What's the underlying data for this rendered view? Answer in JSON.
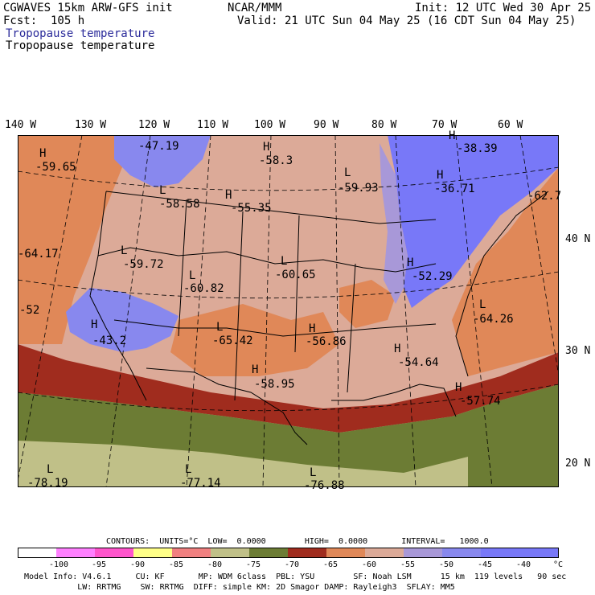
{
  "header": {
    "model": "CGWAVES 15km ARW-GFS init",
    "org": "NCAR/MMM",
    "init": "Init: 12 UTC Wed 30 Apr 25",
    "fcst": "Fcst:  105 h",
    "valid": "Valid: 21 UTC Sun 04 May 25 (16 CDT Sun 04 May 25)",
    "field_title": "Tropopause temperature",
    "field_subtitle": "Tropopause temperature"
  },
  "colors": {
    "title_blue": "#2a2a9a",
    "fill_minus100": "#ffffff",
    "fill_minus95": "#ff80ff",
    "fill_minus90": "#ff55cc",
    "fill_minus85": "#ffff88",
    "fill_minus80": "#f08080",
    "fill_minus75": "#c0c088",
    "fill_minus70": "#6c7c34",
    "fill_minus65": "#a02c1e",
    "fill_minus60": "#e08858",
    "fill_minus55": "#dcaa98",
    "fill_minus50": "#a898d8",
    "fill_minus45": "#8888ee",
    "fill_minus40": "#7878f8"
  },
  "lon_labels": [
    "140 W",
    "130 W",
    "120 W",
    "110 W",
    "100 W",
    "90 W",
    "80 W",
    "70 W",
    "60 W"
  ],
  "lat_labels": [
    "40 N",
    "30 N",
    "20 N"
  ],
  "map_labels": [
    {
      "t": "H"
    },
    {
      "t": "-59.65"
    },
    {
      "t": "-47.19"
    },
    {
      "t": "H"
    },
    {
      "t": "-58.3"
    },
    {
      "t": "H"
    },
    {
      "t": "-38.39"
    },
    {
      "t": "L"
    },
    {
      "t": "-59.93"
    },
    {
      "t": "H"
    },
    {
      "t": "-36.71"
    },
    {
      "t": "-62.7"
    },
    {
      "t": "L"
    },
    {
      "t": "-58.58"
    },
    {
      "t": "H"
    },
    {
      "t": "-55.35"
    },
    {
      "t": "-64.17"
    },
    {
      "t": "L"
    },
    {
      "t": "-59.72"
    },
    {
      "t": "L"
    },
    {
      "t": "-60.82"
    },
    {
      "t": "L"
    },
    {
      "t": "-60.65"
    },
    {
      "t": "H"
    },
    {
      "t": "-52.29"
    },
    {
      "t": "L"
    },
    {
      "t": "-64.26"
    },
    {
      "t": "-52"
    },
    {
      "t": "H"
    },
    {
      "t": "-43.2"
    },
    {
      "t": "L"
    },
    {
      "t": "-65.42"
    },
    {
      "t": "H"
    },
    {
      "t": "-56.86"
    },
    {
      "t": "H"
    },
    {
      "t": "-54.64"
    },
    {
      "t": "H"
    },
    {
      "t": "-58.95"
    },
    {
      "t": "H"
    },
    {
      "t": "-57.74"
    },
    {
      "t": "L"
    },
    {
      "t": "-78.19"
    },
    {
      "t": "L"
    },
    {
      "t": "-77.14"
    },
    {
      "t": "L"
    },
    {
      "t": "-76.88"
    }
  ],
  "contours_line": "CONTOURS:  UNITS=°C  LOW=  0.0000        HIGH=  0.0000       INTERVAL=   1000.0",
  "colorbar_ticks": [
    "-100",
    "-95",
    "-90",
    "-85",
    "-80",
    "-75",
    "-70",
    "-65",
    "-60",
    "-55",
    "-50",
    "-45",
    "-40",
    "°C"
  ],
  "model_info_1": "Model Info: V4.6.1     CU: KF       MP: WDM 6class  PBL: YSU        SF: Noah LSM      15 km  119 levels   90 sec",
  "model_info_2": "           LW: RRTMG    SW: RRTMG  DIFF: simple KM: 2D Smagor DAMP: Rayleigh3  SFLAY: MM5"
}
